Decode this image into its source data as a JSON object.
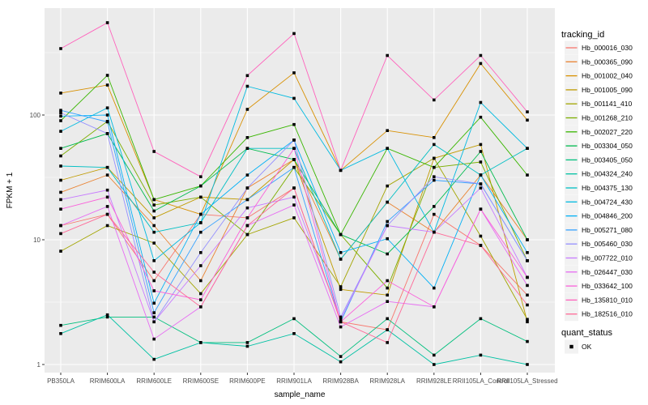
{
  "chart_data": {
    "type": "line",
    "title": "",
    "xlabel": "sample_name",
    "ylabel": "FPKM + 1",
    "y_scale": "log10",
    "ylim": [
      0.9,
      720
    ],
    "y_ticks": [
      1,
      10,
      100
    ],
    "y_minor_ticks": [
      3.162,
      31.62,
      316.2
    ],
    "grid": true,
    "panel_bg": "#EBEBEB",
    "grid_color": "#FFFFFF",
    "marker": "square",
    "marker_color": "#000000",
    "categories": [
      "PB350LA",
      "RRIM600LA",
      "RRIM600LE",
      "RRIM600SE",
      "RRIM600PE",
      "RRIM901LA",
      "RRIM928BA",
      "RRIM928LA",
      "RRIM928LE",
      "RRII105LA_Control",
      "RRII105LA_Stressed"
    ],
    "legend": {
      "title": "tracking_id",
      "position": "right"
    },
    "quant_status": {
      "title": "quant_status",
      "items": [
        {
          "label": "OK",
          "marker": "black-square"
        }
      ]
    },
    "series": [
      {
        "name": "Hb_000016_030",
        "color": "#F8766D",
        "values": [
          13,
          16,
          4.7,
          16,
          15,
          26,
          2.2,
          1.9,
          16,
          9,
          3.6
        ]
      },
      {
        "name": "Hb_000365_090",
        "color": "#EA8331",
        "values": [
          24,
          33,
          13,
          4.7,
          26,
          44,
          7,
          20,
          11.5,
          33,
          10
        ]
      },
      {
        "name": "Hb_001002_040",
        "color": "#D89000",
        "values": [
          150,
          174,
          21,
          16,
          111,
          218,
          36,
          75,
          66,
          259,
          91
        ]
      },
      {
        "name": "Hb_001005_090",
        "color": "#C09B00",
        "values": [
          30,
          38,
          15,
          22,
          21,
          44,
          4,
          3.6,
          45,
          58,
          2.2
        ]
      },
      {
        "name": "Hb_001141_410",
        "color": "#A3A500",
        "values": [
          8.1,
          13,
          9.4,
          3.7,
          11,
          15,
          4.2,
          27,
          45,
          10.7,
          2.3
        ]
      },
      {
        "name": "Hb_001268_210",
        "color": "#7CAE00",
        "values": [
          47,
          89,
          19,
          22,
          11,
          38,
          11,
          4.1,
          38,
          42,
          6.8
        ]
      },
      {
        "name": "Hb_002027_220",
        "color": "#39B600",
        "values": [
          90,
          208,
          21,
          27,
          66,
          84,
          11,
          54,
          38,
          96,
          33
        ]
      },
      {
        "name": "Hb_003304_050",
        "color": "#00BB4E",
        "values": [
          54,
          71,
          17,
          27,
          54,
          44,
          11,
          7.7,
          18.5,
          51,
          10
        ]
      },
      {
        "name": "Hb_003405_050",
        "color": "#00BF7D",
        "values": [
          2.06,
          2.4,
          2.4,
          1.5,
          1.5,
          2.33,
          1.16,
          2.33,
          1.19,
          2.33,
          1.53
        ]
      },
      {
        "name": "Hb_004324_240",
        "color": "#00C1A3",
        "values": [
          1.77,
          2.5,
          1.1,
          1.5,
          1.4,
          1.77,
          1.05,
          1.9,
          1.0,
          1.19,
          1.0
        ]
      },
      {
        "name": "Hb_004375_130",
        "color": "#00BFC4",
        "values": [
          39,
          38,
          11.5,
          13.7,
          54,
          54,
          7,
          20,
          58,
          33,
          54
        ]
      },
      {
        "name": "Hb_004724_430",
        "color": "#00BAE0",
        "values": [
          74,
          114,
          6.8,
          13.7,
          170,
          136,
          36,
          54,
          11.5,
          126,
          54
        ]
      },
      {
        "name": "Hb_004846_200",
        "color": "#00B0F6",
        "values": [
          98,
          100,
          3.1,
          16,
          33,
          63,
          7.9,
          10.2,
          4.1,
          33,
          7.9
        ]
      },
      {
        "name": "Hb_005271_080",
        "color": "#35A2FF",
        "values": [
          109,
          88,
          2.6,
          11.5,
          21,
          38,
          2.2,
          14,
          30,
          28,
          6.8
        ]
      },
      {
        "name": "Hb_005460_030",
        "color": "#9590FF",
        "values": [
          104,
          71,
          2.2,
          7.9,
          26,
          63,
          2.4,
          13,
          32,
          28,
          6.8
        ]
      },
      {
        "name": "Hb_007722_010",
        "color": "#C77CFF",
        "values": [
          21,
          25,
          2.2,
          6.2,
          18,
          22,
          2.3,
          13,
          11.5,
          26,
          5
        ]
      },
      {
        "name": "Hb_026447_030",
        "color": "#E76BF3",
        "values": [
          13,
          18.5,
          1.6,
          2.9,
          13,
          19,
          2.0,
          3.2,
          2.9,
          17.6,
          4.3
        ]
      },
      {
        "name": "Hb_033642_100",
        "color": "#FA62DB",
        "values": [
          17.6,
          22,
          3.9,
          3.3,
          15,
          54,
          2.2,
          4.7,
          2.9,
          17.6,
          5
        ]
      },
      {
        "name": "Hb_135810_010",
        "color": "#FF62BC",
        "values": [
          341,
          550,
          51,
          32,
          207,
          450,
          36,
          300,
          132,
          300,
          106
        ]
      },
      {
        "name": "Hb_182516_010",
        "color": "#FF6A98",
        "values": [
          11.2,
          16,
          5.5,
          2.9,
          13,
          26,
          2.2,
          1.5,
          11.5,
          9,
          3.0
        ]
      }
    ]
  }
}
